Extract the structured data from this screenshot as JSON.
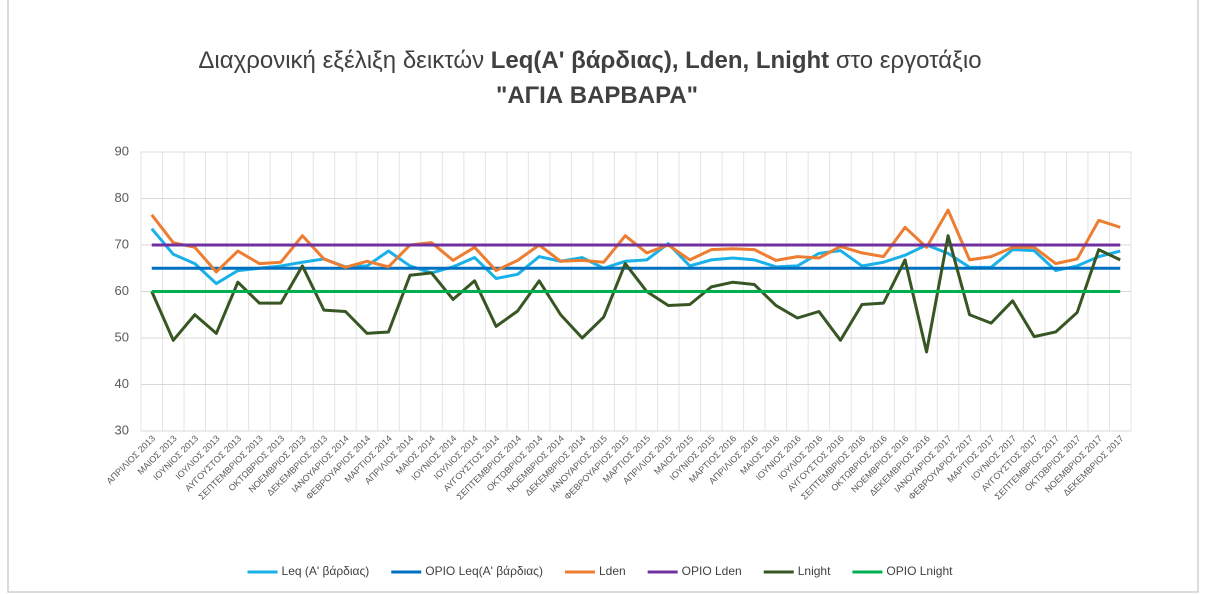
{
  "chart_data": {
    "type": "line",
    "title": [
      "Διαχρονική εξέλιξη δεικτών",
      "Leq(A' βάρδιας), Lden, Lnight",
      "στο εργοτάξιο",
      "\"ΑΓΙΑ ΒΑΡΒΑΡΑ\""
    ],
    "categories": [
      "ΑΠΡΙΛΙΟΣ 2013",
      "ΜΑΙΟΣ 2013",
      "ΙΟΥΝΙΟΣ 2013",
      "ΙΟΥΛΙΟΣ 2013",
      "ΑΥΓΟΥΣΤΟΣ 2013",
      "ΣΕΠΤΕΜΒΡΙΟΣ 2013",
      "ΟΚΤΩΒΡΙΟΣ 2013",
      "ΝΟΕΜΒΡΙΟΣ 2013",
      "ΔΕΚΕΜΒΡΙΟΣ 2013",
      "ΙΑΝΟΥΑΡΙΟΣ 2014",
      "ΦΕΒΡΟΥΑΡΙΟΣ 2014",
      "ΜΑΡΤΙΟΣ 2014",
      "ΑΠΡΙΛΙΟΣ 2014",
      "ΜΑΙΟΣ 2014",
      "ΙΟΥΝΙΟΣ 2014",
      "ΙΟΥΛΙΟΣ 2014",
      "ΑΥΓΟΥΣΤΟΣ 2014",
      "ΣΕΠΤΕΜΒΡΙΟΣ 2014",
      "ΟΚΤΩΒΡΙΟΣ 2014",
      "ΝΟΕΜΒΡΙΟΣ 2014",
      "ΔΕΚΕΜΒΡΙΟΣ 2014",
      "ΙΑΝΟΥΑΡΙΟΣ 2015",
      "ΦΕΒΡΟΥΑΡΙΟΣ 2015",
      "ΜΑΡΤΙΟΣ 2015",
      "ΑΠΡΙΛΙΟΣ 2015",
      "ΜΑΙΟΣ 2015",
      "ΙΟΥΝΙΟΣ 2015",
      "ΜΑΡΤΙΟΣ 2016",
      "ΑΠΡΙΛΙΟΣ 2016",
      "ΜΑΙΟΣ 2016",
      "ΙΟΥΝΙΟΣ 2016",
      "ΙΟΥΛΙΟΣ 2016",
      "ΑΥΓΟΥΣΤΟΣ 2016",
      "ΣΕΠΤΕΜΒΡΙΟΣ 2016",
      "ΟΚΤΩΒΡΙΟΣ 2016",
      "ΝΟΕΜΒΡΙΟΣ 2016",
      "ΔΕΚΕΜΒΡΙΟΣ 2016",
      "ΙΑΝΟΥΑΡΙΟΣ 2017",
      "ΦΕΒΡΟΥΑΡΙΟΣ 2017",
      "ΜΑΡΤΙΟΣ 2017",
      "ΙΟΥΝΙΟΣ 2017",
      "ΑΥΓΟΥΣΤΟΣ 2017",
      "ΣΕΠΤΕΜΒΡΙΟΣ 2017",
      "ΟΚΤΩΒΡΙΟΣ 2017",
      "ΝΟΕΜΒΡΙΟΣ 2017",
      "ΔΕΚΕΜΒΡΙΟΣ 2017"
    ],
    "series": [
      {
        "name": "Leq  (A' βάρδιας)",
        "color": "#1ab0e8",
        "values": [
          73.5,
          68,
          66,
          61.7,
          64.5,
          65,
          65.5,
          66.3,
          67,
          65.3,
          65.5,
          68.7,
          65.5,
          64,
          65.3,
          67.3,
          62.8,
          63.7,
          67.5,
          66.5,
          67.3,
          65,
          66.5,
          66.8,
          70.3,
          65.5,
          66.8,
          67.2,
          66.8,
          65.3,
          65.5,
          68.2,
          68.8,
          65.5,
          66.3,
          67.8,
          70,
          68.2,
          65.2,
          65.2,
          69,
          68.8,
          64.5,
          65.5,
          67.5,
          68.7
        ]
      },
      {
        "name": "ΟΡΙΟ Leq(A' βάρδιας)",
        "color": "#0070c0",
        "values": [
          65,
          65,
          65,
          65,
          65,
          65,
          65,
          65,
          65,
          65,
          65,
          65,
          65,
          65,
          65,
          65,
          65,
          65,
          65,
          65,
          65,
          65,
          65,
          65,
          65,
          65,
          65,
          65,
          65,
          65,
          65,
          65,
          65,
          65,
          65,
          65,
          65,
          65,
          65,
          65,
          65,
          65,
          65,
          65,
          65,
          65
        ]
      },
      {
        "name": "Lden",
        "color": "#ed7d31",
        "values": [
          76.5,
          70.5,
          69.5,
          64.2,
          68.7,
          66,
          66.3,
          72,
          67,
          65.2,
          66.5,
          65.3,
          70,
          70.5,
          66.7,
          69.5,
          64.5,
          66.7,
          70,
          66.5,
          66.7,
          66.3,
          72,
          68.3,
          70,
          66.8,
          69,
          69.2,
          69,
          66.7,
          67.5,
          67.2,
          69.7,
          68.3,
          67.5,
          73.8,
          69.5,
          77.5,
          66.8,
          67.5,
          69.5,
          69.5,
          66,
          67,
          75.3,
          73.8
        ]
      },
      {
        "name": "ΟΡΙΟ Lden",
        "color": "#7030a0",
        "values": [
          70,
          70,
          70,
          70,
          70,
          70,
          70,
          70,
          70,
          70,
          70,
          70,
          70,
          70,
          70,
          70,
          70,
          70,
          70,
          70,
          70,
          70,
          70,
          70,
          70,
          70,
          70,
          70,
          70,
          70,
          70,
          70,
          70,
          70,
          70,
          70,
          70,
          70,
          70,
          70,
          70,
          70,
          70,
          70,
          70,
          70
        ]
      },
      {
        "name": "Lnight",
        "color": "#375623",
        "values": [
          60,
          49.5,
          55,
          51,
          62,
          57.5,
          57.5,
          65.5,
          56,
          55.7,
          51,
          51.3,
          63.5,
          64,
          58.3,
          62.3,
          52.5,
          55.8,
          62.3,
          55,
          50,
          54.5,
          66,
          60,
          57,
          57.2,
          61,
          62,
          61.5,
          57,
          54.3,
          55.7,
          49.5,
          57.2,
          57.5,
          66.8,
          47,
          72,
          55,
          53.2,
          58,
          50.3,
          51.3,
          55.5,
          69,
          66.8
        ]
      },
      {
        "name": "ΟΡΙΟ Lnight",
        "color": "#00b050",
        "values": [
          60,
          60,
          60,
          60,
          60,
          60,
          60,
          60,
          60,
          60,
          60,
          60,
          60,
          60,
          60,
          60,
          60,
          60,
          60,
          60,
          60,
          60,
          60,
          60,
          60,
          60,
          60,
          60,
          60,
          60,
          60,
          60,
          60,
          60,
          60,
          60,
          60,
          60,
          60,
          60,
          60,
          60,
          60,
          60,
          60,
          60
        ]
      }
    ],
    "ylim": [
      30,
      90
    ],
    "yticks": [
      30,
      40,
      50,
      60,
      70,
      80,
      90
    ],
    "grid": true,
    "legend": "bottom"
  }
}
